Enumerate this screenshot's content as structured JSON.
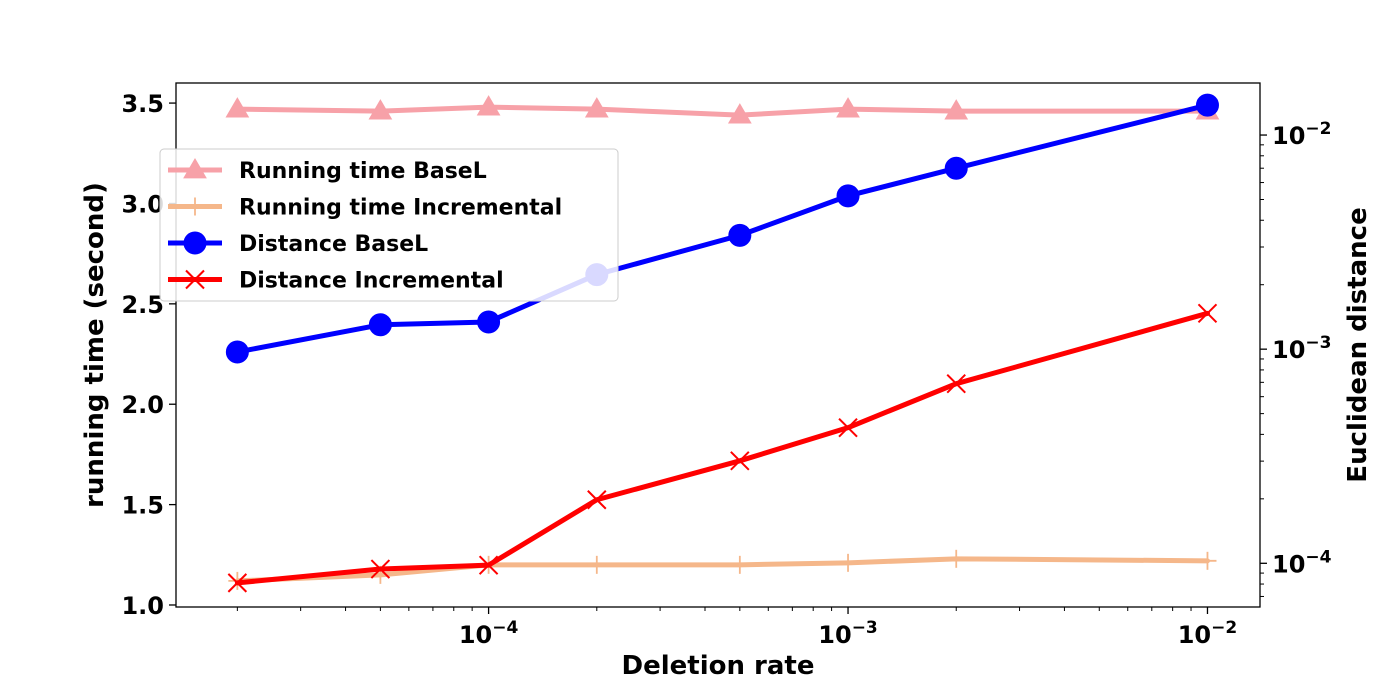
{
  "chart_data": {
    "type": "line",
    "x": [
      2e-05,
      5e-05,
      0.0001,
      0.0002,
      0.0005,
      0.001,
      0.002,
      0.01
    ],
    "xlabel": "Deletion rate",
    "xscale": "log",
    "xlim": [
      1.35e-05,
      0.014
    ],
    "xticks": [
      {
        "value": 0.0001,
        "base": "10",
        "exp": "−4"
      },
      {
        "value": 0.001,
        "base": "10",
        "exp": "−3"
      },
      {
        "value": 0.01,
        "base": "10",
        "exp": "−2"
      }
    ],
    "ylabel_left": "running time (second)",
    "ylim_left": [
      0.99,
      3.6
    ],
    "yticks_left": [
      "1.0",
      "1.5",
      "2.0",
      "2.5",
      "3.0",
      "3.5"
    ],
    "ylabel_right": "Euclidean distance",
    "yscale_right": "log",
    "ylim_right": [
      6.25e-05,
      0.0175
    ],
    "yticks_right": [
      {
        "value": 0.0001,
        "base": "10",
        "exp": "−4"
      },
      {
        "value": 0.001,
        "base": "10",
        "exp": "−3"
      },
      {
        "value": 0.01,
        "base": "10",
        "exp": "−2"
      }
    ],
    "legend_position": "upper-left",
    "grid": false,
    "series": [
      {
        "name": "Running time BaseL",
        "axis": "left",
        "color": "#f7a1a8",
        "marker": "triangle",
        "values": [
          3.47,
          3.46,
          3.48,
          3.47,
          3.44,
          3.47,
          3.46,
          3.46
        ]
      },
      {
        "name": "Running time Incremental",
        "axis": "left",
        "color": "#f5b78a",
        "marker": "plus",
        "values": [
          1.12,
          1.15,
          1.2,
          1.2,
          1.2,
          1.21,
          1.23,
          1.22
        ]
      },
      {
        "name": "Distance BaseL",
        "axis": "right",
        "color": "#0000ff",
        "marker": "circle",
        "values": [
          0.00097,
          0.0013,
          0.00134,
          0.00223,
          0.0034,
          0.0052,
          0.007,
          0.0138
        ]
      },
      {
        "name": "Distance Incremental",
        "axis": "right",
        "color": "#ff0000",
        "marker": "x",
        "values": [
          8.1e-05,
          9.4e-05,
          9.8e-05,
          0.000198,
          0.000301,
          0.00043,
          0.00069,
          0.00147
        ]
      }
    ]
  }
}
